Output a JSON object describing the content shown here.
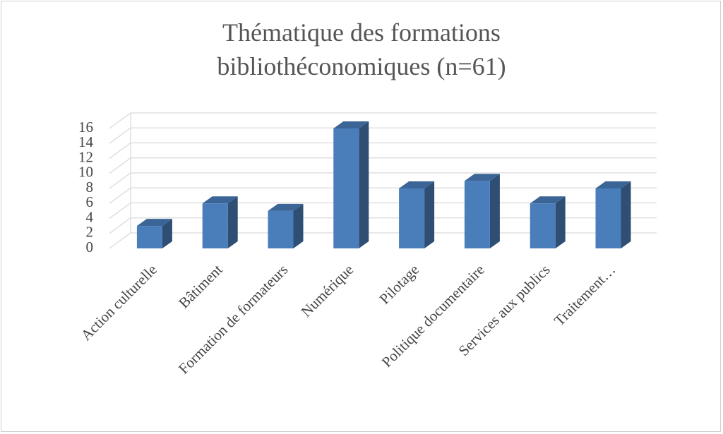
{
  "chart_data": {
    "type": "bar3d",
    "title": "Thématique des formations bibliothéconomiques (n=61)",
    "categories": [
      "Action culturelle",
      "Bâtiment",
      "Formation de formateurs",
      "Numérique",
      "Pilotage",
      "Politique documentaire",
      "Services aux publics",
      "Traitement…"
    ],
    "values": [
      3,
      6,
      5,
      16,
      8,
      9,
      6,
      8
    ],
    "color": "#4a7ebb",
    "ylim": [
      0,
      16
    ],
    "yticks": [
      0,
      2,
      4,
      6,
      8,
      10,
      12,
      14,
      16
    ],
    "grid": true
  }
}
